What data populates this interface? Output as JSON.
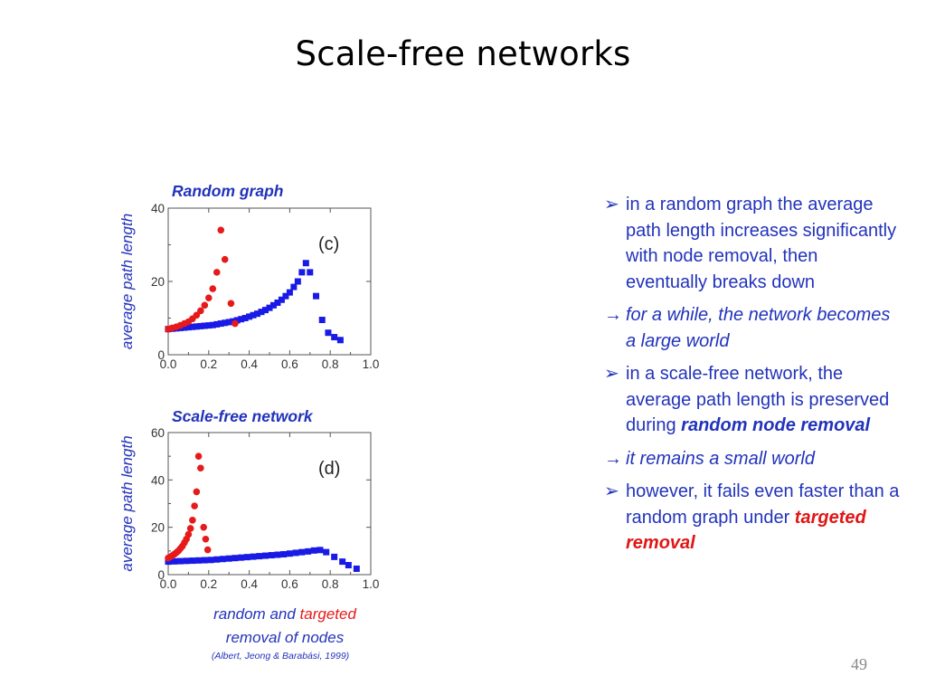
{
  "slide": {
    "title": "Scale-free networks",
    "page_number": "49"
  },
  "figure": {
    "x_axis_label_part1": "random and ",
    "x_axis_label_part2": "targeted",
    "x_axis_label_line2": "removal of nodes",
    "citation": "(Albert, Jeong & Barabási, 1999)",
    "colors": {
      "random": "#1a1ae6",
      "targeted": "#e61a1a",
      "label": "#2233bb"
    }
  },
  "chart_data": [
    {
      "type": "scatter",
      "title": "Random graph",
      "panel_tag": "(c)",
      "xlabel": "",
      "ylabel": "average path length",
      "xlim": [
        0.0,
        1.0
      ],
      "ylim": [
        0,
        40
      ],
      "x_ticks": [
        "0.0",
        "0.2",
        "0.4",
        "0.6",
        "0.8",
        "1.0"
      ],
      "y_ticks": [
        "0",
        "20",
        "40"
      ],
      "series": [
        {
          "marker": "square",
          "color": "#1a1ae6",
          "points": [
            [
              0.0,
              7.0
            ],
            [
              0.02,
              7.1
            ],
            [
              0.04,
              7.2
            ],
            [
              0.06,
              7.3
            ],
            [
              0.08,
              7.4
            ],
            [
              0.1,
              7.5
            ],
            [
              0.12,
              7.6
            ],
            [
              0.14,
              7.7
            ],
            [
              0.16,
              7.8
            ],
            [
              0.18,
              7.9
            ],
            [
              0.2,
              8.0
            ],
            [
              0.22,
              8.1
            ],
            [
              0.24,
              8.3
            ],
            [
              0.26,
              8.5
            ],
            [
              0.28,
              8.7
            ],
            [
              0.3,
              8.9
            ],
            [
              0.32,
              9.1
            ],
            [
              0.34,
              9.4
            ],
            [
              0.36,
              9.7
            ],
            [
              0.38,
              10.0
            ],
            [
              0.4,
              10.4
            ],
            [
              0.42,
              10.8
            ],
            [
              0.44,
              11.2
            ],
            [
              0.46,
              11.7
            ],
            [
              0.48,
              12.2
            ],
            [
              0.5,
              12.8
            ],
            [
              0.52,
              13.5
            ],
            [
              0.54,
              14.2
            ],
            [
              0.56,
              15.0
            ],
            [
              0.58,
              16.0
            ],
            [
              0.6,
              17.0
            ],
            [
              0.62,
              18.5
            ],
            [
              0.64,
              20.0
            ],
            [
              0.66,
              22.5
            ],
            [
              0.68,
              25.0
            ],
            [
              0.7,
              22.5
            ],
            [
              0.73,
              16.0
            ],
            [
              0.76,
              9.5
            ],
            [
              0.79,
              6.0
            ],
            [
              0.82,
              4.8
            ],
            [
              0.85,
              4.0
            ]
          ]
        },
        {
          "marker": "circle",
          "color": "#e61a1a",
          "points": [
            [
              0.0,
              7.0
            ],
            [
              0.02,
              7.3
            ],
            [
              0.04,
              7.6
            ],
            [
              0.06,
              8.0
            ],
            [
              0.08,
              8.5
            ],
            [
              0.1,
              9.0
            ],
            [
              0.12,
              9.8
            ],
            [
              0.14,
              10.8
            ],
            [
              0.16,
              12.0
            ],
            [
              0.18,
              13.5
            ],
            [
              0.2,
              15.5
            ],
            [
              0.22,
              18.0
            ],
            [
              0.24,
              22.5
            ],
            [
              0.26,
              34.0
            ],
            [
              0.28,
              26.0
            ],
            [
              0.31,
              14.0
            ],
            [
              0.33,
              8.5
            ]
          ]
        }
      ]
    },
    {
      "type": "scatter",
      "title": "Scale-free network",
      "panel_tag": "(d)",
      "xlabel": "",
      "ylabel": "average path length",
      "xlim": [
        0.0,
        1.0
      ],
      "ylim": [
        0,
        60
      ],
      "x_ticks": [
        "0.0",
        "0.2",
        "0.4",
        "0.6",
        "0.8",
        "1.0"
      ],
      "y_ticks": [
        "0",
        "20",
        "40",
        "60"
      ],
      "series": [
        {
          "marker": "square",
          "color": "#1a1ae6",
          "points": [
            [
              0.0,
              5.5
            ],
            [
              0.03,
              5.6
            ],
            [
              0.06,
              5.7
            ],
            [
              0.09,
              5.8
            ],
            [
              0.12,
              5.9
            ],
            [
              0.15,
              6.0
            ],
            [
              0.18,
              6.1
            ],
            [
              0.21,
              6.2
            ],
            [
              0.24,
              6.4
            ],
            [
              0.27,
              6.6
            ],
            [
              0.3,
              6.8
            ],
            [
              0.33,
              7.0
            ],
            [
              0.36,
              7.2
            ],
            [
              0.39,
              7.4
            ],
            [
              0.42,
              7.6
            ],
            [
              0.45,
              7.8
            ],
            [
              0.48,
              8.0
            ],
            [
              0.51,
              8.2
            ],
            [
              0.54,
              8.4
            ],
            [
              0.57,
              8.6
            ],
            [
              0.6,
              8.9
            ],
            [
              0.63,
              9.2
            ],
            [
              0.66,
              9.5
            ],
            [
              0.69,
              9.8
            ],
            [
              0.72,
              10.2
            ],
            [
              0.75,
              10.4
            ],
            [
              0.78,
              9.5
            ],
            [
              0.82,
              7.5
            ],
            [
              0.86,
              5.5
            ],
            [
              0.89,
              4.0
            ],
            [
              0.93,
              2.5
            ]
          ]
        },
        {
          "marker": "circle",
          "color": "#e61a1a",
          "points": [
            [
              0.0,
              7.0
            ],
            [
              0.01,
              7.5
            ],
            [
              0.02,
              8.0
            ],
            [
              0.03,
              8.6
            ],
            [
              0.04,
              9.3
            ],
            [
              0.05,
              10.0
            ],
            [
              0.06,
              11.0
            ],
            [
              0.07,
              12.0
            ],
            [
              0.08,
              13.5
            ],
            [
              0.09,
              15.0
            ],
            [
              0.1,
              17.0
            ],
            [
              0.11,
              19.5
            ],
            [
              0.12,
              23.0
            ],
            [
              0.13,
              29.0
            ],
            [
              0.14,
              35.0
            ],
            [
              0.15,
              50.0
            ],
            [
              0.16,
              45.0
            ],
            [
              0.175,
              20.0
            ],
            [
              0.185,
              15.0
            ],
            [
              0.195,
              10.5
            ]
          ]
        }
      ]
    }
  ],
  "bullets": [
    {
      "type": "check",
      "segments": [
        {
          "text": "in a random graph the average path length increases significantly with node removal, then eventually breaks down",
          "style": "normal"
        }
      ]
    },
    {
      "type": "arrow",
      "segments": [
        {
          "text": "for a while, the network becomes a large world",
          "style": "normal"
        }
      ]
    },
    {
      "type": "check",
      "segments": [
        {
          "text": "in a scale-free network, the average path length is preserved during ",
          "style": "normal"
        },
        {
          "text": "random node removal",
          "style": "bold"
        }
      ]
    },
    {
      "type": "arrow",
      "segments": [
        {
          "text": "it remains a small world",
          "style": "normal"
        }
      ]
    },
    {
      "type": "check",
      "segments": [
        {
          "text": "however, it fails even faster than a random graph under ",
          "style": "normal"
        },
        {
          "text": "targeted removal",
          "style": "bold-red"
        }
      ]
    }
  ]
}
